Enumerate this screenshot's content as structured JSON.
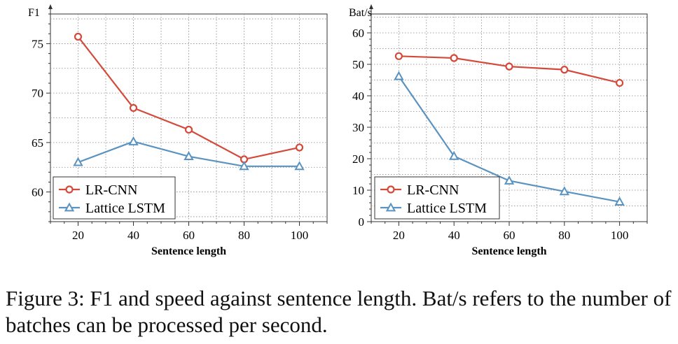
{
  "chart_data": [
    {
      "type": "line",
      "title": "",
      "ylabel": "F1",
      "xlabel": "Sentence length",
      "x": [
        20,
        40,
        60,
        80,
        100
      ],
      "xlim": [
        10,
        110
      ],
      "ylim": [
        57,
        78
      ],
      "yticks": [
        60,
        65,
        70,
        75
      ],
      "grid": true,
      "legend": "bottom-left",
      "series": [
        {
          "name": "LR-CNN",
          "color": "#d44a3a",
          "marker": "circle",
          "values": [
            75.7,
            68.5,
            66.3,
            63.3,
            64.5
          ]
        },
        {
          "name": "Lattice LSTM",
          "color": "#5b93c0",
          "marker": "triangle",
          "values": [
            63.0,
            65.1,
            63.6,
            62.6,
            62.6
          ]
        }
      ]
    },
    {
      "type": "line",
      "title": "",
      "ylabel": "Bat/s",
      "xlabel": "Sentence length",
      "x": [
        20,
        40,
        60,
        80,
        100
      ],
      "xlim": [
        10,
        110
      ],
      "ylim": [
        0,
        66
      ],
      "yticks": [
        0,
        10,
        20,
        30,
        40,
        50,
        60
      ],
      "grid": true,
      "legend": "bottom-left",
      "series": [
        {
          "name": "LR-CNN",
          "color": "#d44a3a",
          "marker": "circle",
          "values": [
            52.6,
            52.0,
            49.3,
            48.3,
            44.1
          ]
        },
        {
          "name": "Lattice LSTM",
          "color": "#5b93c0",
          "marker": "triangle",
          "values": [
            46.2,
            20.8,
            13.0,
            9.6,
            6.3
          ]
        }
      ]
    }
  ],
  "caption": "Figure 3: F1 and speed against sentence length. Bat/s refers to the number of batches can be processed per second."
}
